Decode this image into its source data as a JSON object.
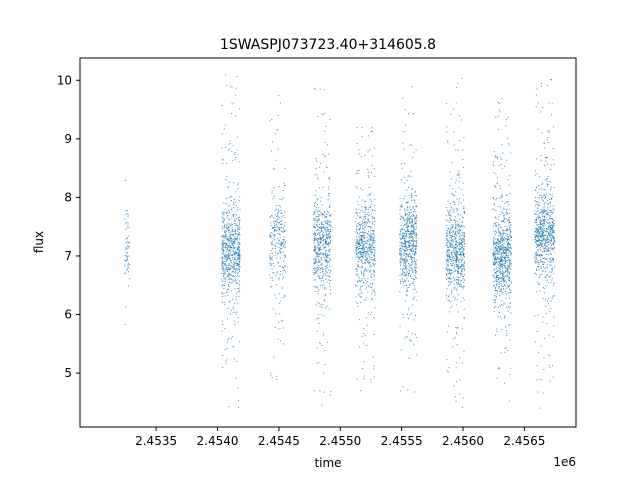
{
  "chart_data": {
    "type": "scatter",
    "title": "1SWASPJ073723.40+314605.8",
    "xlabel": "time",
    "ylabel": "flux",
    "x_offset_label": "1e6",
    "xlim": [
      2.45288,
      2.45692
    ],
    "ylim": [
      4.08,
      10.38
    ],
    "x_ticks": [
      2.4535,
      2.454,
      2.4545,
      2.455,
      2.4555,
      2.456,
      2.4565
    ],
    "x_tick_labels": [
      "2.4535",
      "2.4540",
      "2.4545",
      "2.4550",
      "2.4555",
      "2.4560",
      "2.4565"
    ],
    "y_ticks": [
      5,
      6,
      7,
      8,
      9,
      10
    ],
    "y_tick_labels": [
      "5",
      "6",
      "7",
      "8",
      "9",
      "10"
    ],
    "grid": false,
    "marker_color": "#1f77b4",
    "clusters": [
      {
        "x_min": 2.45324,
        "x_max": 2.45328,
        "y_center": 7.2,
        "y_min": 5.6,
        "y_max": 8.3,
        "n": 60
      },
      {
        "x_min": 2.45403,
        "x_max": 2.45418,
        "y_center": 7.1,
        "y_min": 4.4,
        "y_max": 10.1,
        "n": 650
      },
      {
        "x_min": 2.45442,
        "x_max": 2.45455,
        "y_center": 7.3,
        "y_min": 4.7,
        "y_max": 10.1,
        "n": 260
      },
      {
        "x_min": 2.45478,
        "x_max": 2.45492,
        "y_center": 7.2,
        "y_min": 4.4,
        "y_max": 10.1,
        "n": 520
      },
      {
        "x_min": 2.45512,
        "x_max": 2.45528,
        "y_center": 7.2,
        "y_min": 4.7,
        "y_max": 9.2,
        "n": 560
      },
      {
        "x_min": 2.45548,
        "x_max": 2.45562,
        "y_center": 7.2,
        "y_min": 4.6,
        "y_max": 10.0,
        "n": 600
      },
      {
        "x_min": 2.45586,
        "x_max": 2.45601,
        "y_center": 7.1,
        "y_min": 4.4,
        "y_max": 10.1,
        "n": 620
      },
      {
        "x_min": 2.45624,
        "x_max": 2.45639,
        "y_center": 7.0,
        "y_min": 4.4,
        "y_max": 9.7,
        "n": 720
      },
      {
        "x_min": 2.45658,
        "x_max": 2.45674,
        "y_center": 7.4,
        "y_min": 4.4,
        "y_max": 10.1,
        "n": 680
      }
    ]
  }
}
